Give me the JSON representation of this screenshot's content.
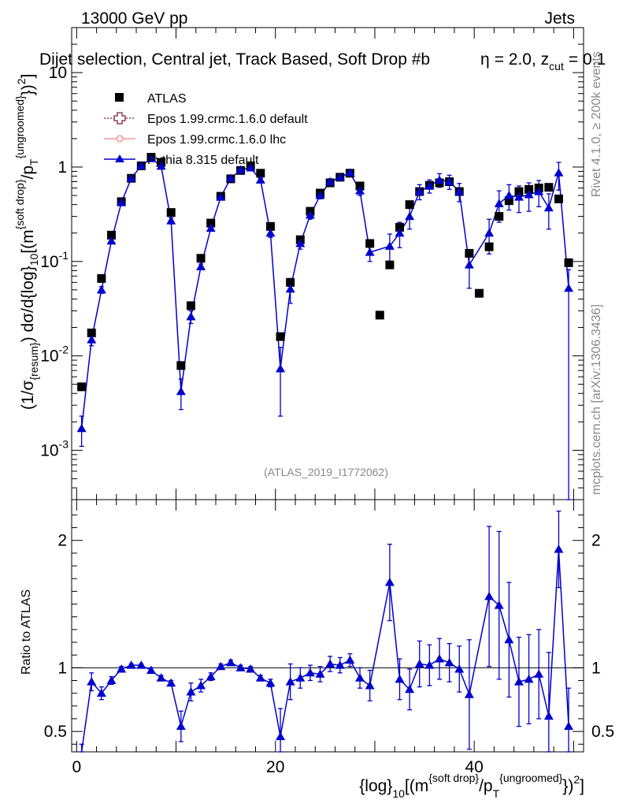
{
  "header": {
    "energy": "13000 GeV pp",
    "category": "Jets",
    "title": "Dijet selection, Central jet, Track Based, Soft Drop #b",
    "title_beta": "= 2.0, z",
    "title_cut_sub": "cut",
    "title_cut_val": "= 0.1",
    "beta_symbol": "η",
    "rivet_label": "Rivet 4.1.0, ≥ 200k events",
    "source_label": "mcplots.cern.ch [arXiv:1306.3436]",
    "analysis_id": "(ATLAS_2019_I1772062)"
  },
  "axis_labels": {
    "y_main": "(1/σ_{resum}) dσ/d{log}_{10}[(m^{soft drop}/p_T^{ungroomed})^2]",
    "y_ratio": "Ratio to ATLAS",
    "x": "{log}_{10}[(m^{soft drop}/p_T^{ungroomed})^2]"
  },
  "legend": [
    {
      "name": "ATLAS",
      "marker": "square",
      "color": "#000000"
    },
    {
      "name": "Epos 1.99.crmc.1.6.0 default",
      "marker": "open-cross",
      "color": "#7a1f3d"
    },
    {
      "name": "Epos 1.99.crmc.1.6.0 lhc",
      "marker": "small-cross",
      "color": "#f08080"
    },
    {
      "name": "Pythia 8.315 default",
      "marker": "triangle",
      "color": "#0000cc"
    }
  ],
  "chart_data": [
    {
      "type": "scatter",
      "panel": "main",
      "yscale": "log",
      "xlim": [
        -0.5,
        51
      ],
      "ylim": [
        0.0003,
        30
      ],
      "x_ticks": [
        0,
        20,
        40
      ],
      "x_tick_labels": [
        "0",
        "20",
        "40"
      ],
      "y_ticks": [
        0.001,
        0.01,
        0.1,
        1,
        10
      ],
      "y_tick_labels": [
        "10^-3",
        "10^-2",
        "10^-1",
        "1",
        "10"
      ],
      "x": [
        0.5,
        1.5,
        2.5,
        3.5,
        4.5,
        5.5,
        6.5,
        7.5,
        8.5,
        9.5,
        10.5,
        11.5,
        12.5,
        13.5,
        14.5,
        15.5,
        16.5,
        17.5,
        18.5,
        19.5,
        20.5,
        21.5,
        22.5,
        23.5,
        24.5,
        25.5,
        26.5,
        27.5,
        28.5,
        29.5,
        30.5,
        31.5,
        32.5,
        33.5,
        34.5,
        35.5,
        36.5,
        37.5,
        38.5,
        39.5,
        40.5,
        41.5,
        42.5,
        43.5,
        44.5,
        45.5,
        46.5,
        47.5,
        48.5,
        49.5
      ],
      "series": [
        {
          "name": "ATLAS",
          "values": [
            0.0047,
            0.0175,
            0.066,
            0.19,
            0.43,
            0.76,
            1.03,
            1.27,
            1.12,
            0.33,
            0.0079,
            0.034,
            0.108,
            0.255,
            0.49,
            0.75,
            0.92,
            1.03,
            0.86,
            0.235,
            0.016,
            0.06,
            0.17,
            0.34,
            0.53,
            0.68,
            0.78,
            0.86,
            0.63,
            0.155,
            0.027,
            0.092,
            0.23,
            0.4,
            0.55,
            0.64,
            0.68,
            0.7,
            0.55,
            0.122,
            0.046,
            0.143,
            0.3,
            0.44,
            0.55,
            0.58,
            0.6,
            0.61,
            0.46,
            0.097
          ]
        },
        {
          "name": "Pythia 8.315 default",
          "values": [
            0.0017,
            0.0148,
            0.05,
            0.165,
            0.42,
            0.76,
            1.03,
            1.23,
            1.02,
            0.27,
            0.0042,
            0.026,
            0.088,
            0.225,
            0.48,
            0.76,
            0.93,
            0.98,
            0.73,
            0.2,
            0.0073,
            0.051,
            0.155,
            0.31,
            0.5,
            0.7,
            0.78,
            0.87,
            0.56,
            0.125,
            null,
            0.145,
            0.2,
            0.3,
            0.55,
            0.63,
            0.73,
            0.7,
            0.55,
            0.092,
            null,
            0.2,
            0.41,
            0.5,
            0.48,
            0.51,
            0.55,
            0.37,
            0.87,
            0.052
          ],
          "errors_low": [
            0.0006,
            0.002,
            0.004,
            0.01,
            0.02,
            0.02,
            0.02,
            0.03,
            0.03,
            0.02,
            0.0015,
            0.004,
            0.006,
            0.01,
            0.02,
            0.02,
            0.02,
            0.03,
            0.03,
            0.02,
            0.005,
            0.015,
            0.02,
            0.03,
            0.04,
            0.05,
            0.06,
            0.06,
            0.06,
            0.025,
            null,
            0.05,
            0.06,
            0.08,
            0.1,
            0.1,
            0.12,
            0.12,
            0.12,
            0.04,
            null,
            0.08,
            0.15,
            0.15,
            0.15,
            0.17,
            0.17,
            0.15,
            0.3,
            0.0519
          ],
          "errors_high": [
            0.0006,
            0.002,
            0.004,
            0.01,
            0.02,
            0.02,
            0.02,
            0.03,
            0.03,
            0.02,
            0.0015,
            0.004,
            0.006,
            0.01,
            0.02,
            0.02,
            0.02,
            0.03,
            0.03,
            0.02,
            0.005,
            0.015,
            0.02,
            0.03,
            0.04,
            0.05,
            0.06,
            0.06,
            0.06,
            0.025,
            null,
            0.05,
            0.06,
            0.08,
            0.1,
            0.1,
            0.12,
            0.12,
            0.12,
            0.04,
            null,
            0.08,
            0.15,
            0.15,
            0.15,
            0.17,
            0.17,
            0.15,
            0.25,
            0.03
          ]
        }
      ]
    },
    {
      "type": "scatter",
      "panel": "ratio",
      "ylabel": "Ratio to ATLAS",
      "xlim": [
        -0.5,
        51
      ],
      "ylim": [
        0.34,
        2.32
      ],
      "reference_line": 1,
      "x_ticks": [
        0,
        20,
        40
      ],
      "x_tick_labels": [
        "0",
        "20",
        "40"
      ],
      "y_ticks": [
        0.5,
        1,
        2
      ],
      "y_tick_labels": [
        "0.5",
        "1",
        "2"
      ],
      "x": [
        0.5,
        1.5,
        2.5,
        3.5,
        4.5,
        5.5,
        6.5,
        7.5,
        8.5,
        9.5,
        10.5,
        11.5,
        12.5,
        13.5,
        14.5,
        15.5,
        16.5,
        17.5,
        18.5,
        19.5,
        20.5,
        21.5,
        22.5,
        23.5,
        24.5,
        25.5,
        26.5,
        27.5,
        28.5,
        29.5,
        30.5,
        31.5,
        32.5,
        33.5,
        34.5,
        35.5,
        36.5,
        37.5,
        38.5,
        39.5,
        40.5,
        41.5,
        42.5,
        43.5,
        44.5,
        45.5,
        46.5,
        47.5,
        48.5,
        49.5
      ],
      "series": [
        {
          "name": "Pythia 8.315 / ATLAS",
          "values": [
            0.3,
            0.89,
            0.8,
            0.9,
            0.99,
            1.02,
            1.02,
            0.98,
            0.92,
            0.88,
            0.54,
            0.81,
            0.86,
            0.93,
            1.01,
            1.04,
            1.0,
            0.99,
            0.92,
            0.88,
            0.46,
            0.89,
            0.92,
            0.96,
            0.95,
            1.03,
            1.02,
            1.06,
            0.92,
            0.86,
            null,
            1.67,
            0.91,
            0.83,
            1.03,
            1.02,
            1.07,
            1.04,
            0.99,
            0.79,
            null,
            1.56,
            1.49,
            1.22,
            0.89,
            0.91,
            0.95,
            0.62,
            1.93,
            0.54
          ],
          "errors": [
            0.1,
            0.07,
            0.05,
            0.03,
            0.02,
            0.01,
            0.01,
            0.02,
            0.02,
            0.02,
            0.12,
            0.07,
            0.05,
            0.03,
            0.02,
            0.02,
            0.02,
            0.02,
            0.02,
            0.03,
            0.22,
            0.14,
            0.08,
            0.06,
            0.06,
            0.06,
            0.06,
            0.05,
            0.08,
            0.12,
            null,
            0.3,
            0.16,
            0.16,
            0.18,
            0.16,
            0.16,
            0.15,
            0.18,
            0.43,
            null,
            0.55,
            0.58,
            0.45,
            0.35,
            0.35,
            0.35,
            0.5,
            0.3,
            0.3
          ]
        }
      ]
    }
  ]
}
